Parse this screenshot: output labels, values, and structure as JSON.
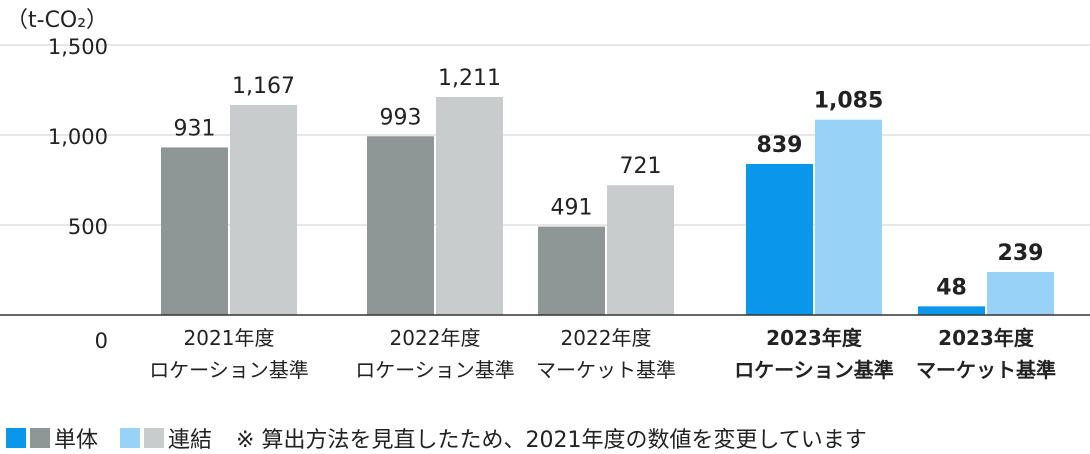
{
  "chart_data": {
    "type": "bar",
    "unit": "（t-CO₂）",
    "ylim": [
      0,
      1500
    ],
    "yticks": [
      0,
      500,
      1000,
      1500
    ],
    "ytick_labels": [
      "0",
      "500",
      "1,000",
      "1,500"
    ],
    "grid": true,
    "categories": [
      {
        "line1": "2021年度",
        "line2": "ロケーション基準",
        "bold": false
      },
      {
        "line1": "2022年度",
        "line2": "ロケーション基準",
        "bold": false
      },
      {
        "line1": "2022年度",
        "line2": "マーケット基準",
        "bold": false
      },
      {
        "line1": "2023年度",
        "line2": "ロケーション基準",
        "bold": true
      },
      {
        "line1": "2023年度",
        "line2": "マーケット基準",
        "bold": true
      }
    ],
    "series": [
      {
        "name": "単体",
        "values": [
          931,
          993,
          491,
          839,
          48
        ],
        "labels": [
          "931",
          "993",
          "491",
          "839",
          "48"
        ]
      },
      {
        "name": "連結",
        "values": [
          1167,
          1211,
          721,
          1085,
          239
        ],
        "labels": [
          "1,167",
          "1,211",
          "721",
          "1,085",
          "239"
        ]
      }
    ],
    "colors": {
      "single_past": "#8f9696",
      "consolidated_past": "#c9cccc",
      "single_current": "#0a96eb",
      "consolidated_current": "#99d2f7"
    }
  },
  "legend": {
    "single_label": "単体",
    "consolidated_label": "連結",
    "note": "※ 算出方法を見直したため、2021年度の数値を変更しています"
  }
}
